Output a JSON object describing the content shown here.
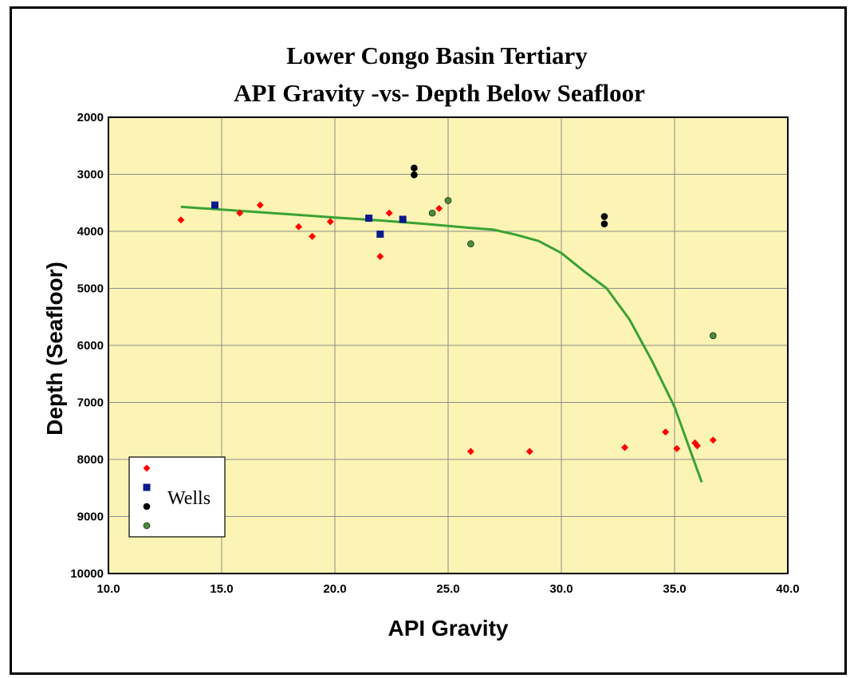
{
  "chart_data": {
    "type": "scatter",
    "title": "Lower Congo Basin Tertiary",
    "subtitle": "API Gravity -vs- Depth Below Seafloor",
    "xlabel": "API Gravity",
    "ylabel": "Depth (Seafloor)",
    "xlim": [
      10.0,
      40.0
    ],
    "ylim": [
      2000,
      10000
    ],
    "y_inverted": true,
    "grid": true,
    "x_ticks": [
      "10.0",
      "15.0",
      "20.0",
      "25.0",
      "30.0",
      "35.0",
      "40.0"
    ],
    "y_ticks": [
      "2000",
      "3000",
      "4000",
      "5000",
      "6000",
      "7000",
      "8000",
      "9000",
      "10000"
    ],
    "x_tick_values": [
      10,
      15,
      20,
      25,
      30,
      35,
      40
    ],
    "y_tick_values": [
      2000,
      3000,
      4000,
      5000,
      6000,
      7000,
      8000,
      9000,
      10000
    ],
    "legend": {
      "label": "Wells",
      "placement": "bottom-left"
    },
    "colors": {
      "plot_background": "#fbf4b4",
      "grid": "#8c8c8c",
      "trend": "#3aa234"
    },
    "series": [
      {
        "marker": "diamond",
        "color": "#ff0000",
        "points": [
          [
            13.2,
            3800
          ],
          [
            15.8,
            3680
          ],
          [
            16.7,
            3540
          ],
          [
            18.4,
            3920
          ],
          [
            19.0,
            4090
          ],
          [
            19.8,
            3830
          ],
          [
            22.0,
            4440
          ],
          [
            22.4,
            3680
          ],
          [
            24.6,
            3600
          ],
          [
            26.0,
            7860
          ],
          [
            28.6,
            7860
          ],
          [
            32.8,
            7790
          ],
          [
            34.6,
            7520
          ],
          [
            35.1,
            7810
          ],
          [
            35.9,
            7710
          ],
          [
            36.0,
            7760
          ],
          [
            36.7,
            7660
          ]
        ]
      },
      {
        "marker": "square",
        "color": "#0a1a8c",
        "points": [
          [
            14.7,
            3540
          ],
          [
            21.5,
            3770
          ],
          [
            22.0,
            4050
          ],
          [
            23.0,
            3790
          ]
        ]
      },
      {
        "marker": "circle",
        "color": "#000000",
        "points": [
          [
            23.5,
            2890
          ],
          [
            23.5,
            3010
          ],
          [
            31.9,
            3740
          ],
          [
            31.9,
            3870
          ]
        ]
      },
      {
        "marker": "circle",
        "color": "#4a8c3a",
        "points": [
          [
            24.3,
            3680
          ],
          [
            25.0,
            3460
          ],
          [
            26.0,
            4220
          ],
          [
            36.7,
            5830
          ]
        ]
      }
    ],
    "trend_line": [
      [
        13.2,
        3570
      ],
      [
        15.0,
        3620
      ],
      [
        18.0,
        3700
      ],
      [
        20.0,
        3760
      ],
      [
        22.0,
        3810
      ],
      [
        24.0,
        3870
      ],
      [
        26.0,
        3940
      ],
      [
        27.0,
        3970
      ],
      [
        28.0,
        4060
      ],
      [
        29.0,
        4170
      ],
      [
        30.0,
        4380
      ],
      [
        31.0,
        4700
      ],
      [
        32.0,
        5000
      ],
      [
        33.0,
        5540
      ],
      [
        34.0,
        6270
      ],
      [
        35.0,
        7080
      ],
      [
        35.6,
        7740
      ],
      [
        36.2,
        8400
      ]
    ]
  }
}
